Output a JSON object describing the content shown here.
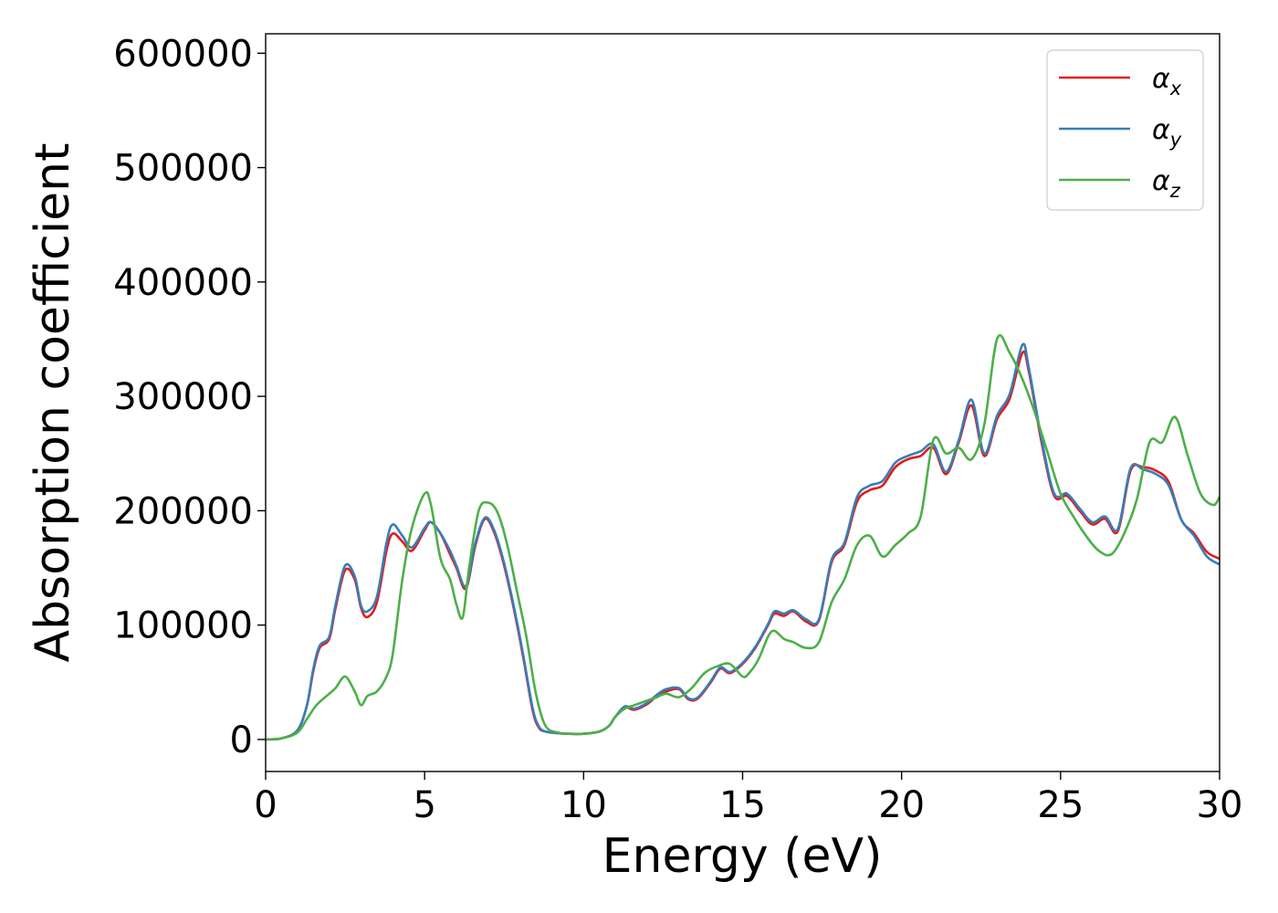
{
  "chart_data": {
    "type": "line",
    "title": "",
    "xlabel": "Energy (eV)",
    "ylabel": "Absorption coefficient",
    "xlim": [
      0,
      30
    ],
    "ylim": [
      -28000,
      617000
    ],
    "xticks": [
      0,
      5,
      10,
      15,
      20,
      25,
      30
    ],
    "yticks": [
      0,
      100000,
      200000,
      300000,
      400000,
      500000,
      600000
    ],
    "grid": false,
    "legend_position": "upper right",
    "series": [
      {
        "name": "αx",
        "color": "#e41a1c",
        "x": [
          0,
          0.5,
          1,
          1.3,
          1.5,
          1.7,
          2,
          2.2,
          2.5,
          2.8,
          3,
          3.2,
          3.5,
          3.8,
          4,
          4.3,
          4.6,
          5,
          5.2,
          5.5,
          5.8,
          6,
          6.3,
          6.6,
          6.9,
          7.2,
          7.5,
          7.8,
          8.1,
          8.4,
          8.6,
          8.8,
          9,
          9.5,
          10,
          10.5,
          10.8,
          11,
          11.3,
          11.6,
          12,
          12.3,
          12.6,
          13,
          13.3,
          13.6,
          14,
          14.3,
          14.6,
          15,
          15.4,
          15.8,
          16,
          16.3,
          16.6,
          17,
          17.4,
          17.8,
          18.2,
          18.6,
          19,
          19.4,
          19.8,
          20.2,
          20.6,
          21,
          21.4,
          21.8,
          22.2,
          22.6,
          23,
          23.4,
          23.8,
          24,
          24.4,
          24.8,
          25.2,
          25.6,
          26,
          26.4,
          26.8,
          27.2,
          27.6,
          28,
          28.4,
          28.8,
          29.2,
          29.6,
          30
        ],
        "values": [
          0,
          1000,
          8000,
          30000,
          60000,
          80000,
          88000,
          115000,
          148000,
          140000,
          115000,
          107000,
          120000,
          165000,
          180000,
          173000,
          165000,
          183000,
          190000,
          180000,
          162000,
          150000,
          132000,
          170000,
          193000,
          180000,
          152000,
          115000,
          72000,
          25000,
          10000,
          7000,
          6000,
          5000,
          5000,
          7000,
          12000,
          20000,
          28000,
          26000,
          31000,
          38000,
          42000,
          44000,
          35000,
          36000,
          50000,
          62000,
          58000,
          66000,
          80000,
          100000,
          110000,
          108000,
          112000,
          103000,
          104000,
          155000,
          170000,
          208000,
          218000,
          222000,
          238000,
          245000,
          248000,
          255000,
          232000,
          260000,
          292000,
          248000,
          280000,
          298000,
          338000,
          322000,
          260000,
          213000,
          213000,
          200000,
          188000,
          193000,
          182000,
          235000,
          238000,
          235000,
          225000,
          192000,
          180000,
          164000,
          158000
        ]
      },
      {
        "name": "αy",
        "color": "#377eb8",
        "x": [
          0,
          0.5,
          1,
          1.3,
          1.5,
          1.7,
          2,
          2.2,
          2.5,
          2.8,
          3,
          3.2,
          3.5,
          3.8,
          4,
          4.3,
          4.6,
          5,
          5.2,
          5.5,
          5.8,
          6,
          6.3,
          6.6,
          6.9,
          7.2,
          7.5,
          7.8,
          8.1,
          8.4,
          8.6,
          8.8,
          9,
          9.5,
          10,
          10.5,
          10.8,
          11,
          11.3,
          11.6,
          12,
          12.3,
          12.6,
          13,
          13.3,
          13.6,
          14,
          14.3,
          14.6,
          15,
          15.4,
          15.8,
          16,
          16.3,
          16.6,
          17,
          17.4,
          17.8,
          18.2,
          18.6,
          19,
          19.4,
          19.8,
          20.2,
          20.6,
          21,
          21.4,
          21.8,
          22.2,
          22.6,
          23,
          23.4,
          23.8,
          24,
          24.4,
          24.8,
          25.2,
          25.6,
          26,
          26.4,
          26.8,
          27.2,
          27.6,
          28,
          28.4,
          28.8,
          29.2,
          29.6,
          30
        ],
        "values": [
          0,
          1000,
          8000,
          30000,
          62000,
          82000,
          90000,
          118000,
          152000,
          143000,
          117000,
          112000,
          125000,
          172000,
          188000,
          178000,
          168000,
          185000,
          190000,
          180000,
          165000,
          152000,
          134000,
          172000,
          194000,
          182000,
          154000,
          117000,
          74000,
          27000,
          11000,
          7000,
          6000,
          5000,
          5000,
          7000,
          12000,
          20000,
          29000,
          27000,
          32000,
          39000,
          44000,
          45000,
          36000,
          37000,
          51000,
          63000,
          59000,
          67000,
          81000,
          101000,
          112000,
          110000,
          113000,
          105000,
          105000,
          157000,
          172000,
          212000,
          222000,
          226000,
          242000,
          248000,
          252000,
          258000,
          234000,
          262000,
          297000,
          250000,
          283000,
          302000,
          345000,
          325000,
          263000,
          215000,
          215000,
          202000,
          190000,
          195000,
          184000,
          237000,
          236000,
          232000,
          222000,
          192000,
          178000,
          160000,
          153000
        ]
      },
      {
        "name": "αz",
        "color": "#4daf4a",
        "x": [
          0,
          0.5,
          1,
          1.3,
          1.6,
          2,
          2.2,
          2.5,
          2.8,
          3,
          3.2,
          3.5,
          3.8,
          4,
          4.3,
          4.6,
          5,
          5.2,
          5.5,
          5.8,
          6,
          6.2,
          6.4,
          6.7,
          7,
          7.3,
          7.6,
          7.9,
          8.2,
          8.5,
          8.8,
          9.2,
          9.6,
          10,
          10.5,
          10.8,
          11,
          11.3,
          11.6,
          12,
          12.3,
          12.6,
          13,
          13.4,
          13.8,
          14.2,
          14.6,
          15,
          15.2,
          15.5,
          15.8,
          16,
          16.3,
          16.6,
          17,
          17.4,
          17.8,
          18.2,
          18.6,
          19,
          19.4,
          19.8,
          20.2,
          20.6,
          21,
          21.4,
          21.8,
          22.2,
          22.6,
          23,
          23.4,
          23.8,
          24.2,
          24.6,
          25,
          25.4,
          25.8,
          26.2,
          26.6,
          27,
          27.4,
          27.8,
          28.2,
          28.6,
          29,
          29.4,
          29.8,
          30
        ],
        "values": [
          0,
          1000,
          6000,
          18000,
          30000,
          40000,
          45000,
          55000,
          42000,
          30000,
          38000,
          42000,
          55000,
          75000,
          140000,
          185000,
          215000,
          205000,
          158000,
          140000,
          118000,
          107000,
          150000,
          200000,
          207000,
          198000,
          170000,
          130000,
          90000,
          40000,
          12000,
          6000,
          5000,
          5000,
          7000,
          12000,
          20000,
          27000,
          30000,
          34000,
          37000,
          40000,
          37000,
          45000,
          58000,
          64000,
          66000,
          55000,
          58000,
          70000,
          90000,
          95000,
          88000,
          85000,
          80000,
          85000,
          120000,
          140000,
          170000,
          178000,
          160000,
          170000,
          180000,
          195000,
          262000,
          250000,
          255000,
          245000,
          275000,
          350000,
          338000,
          315000,
          285000,
          250000,
          215000,
          195000,
          178000,
          165000,
          162000,
          180000,
          210000,
          260000,
          260000,
          282000,
          248000,
          215000,
          205000,
          212000
        ]
      }
    ]
  }
}
